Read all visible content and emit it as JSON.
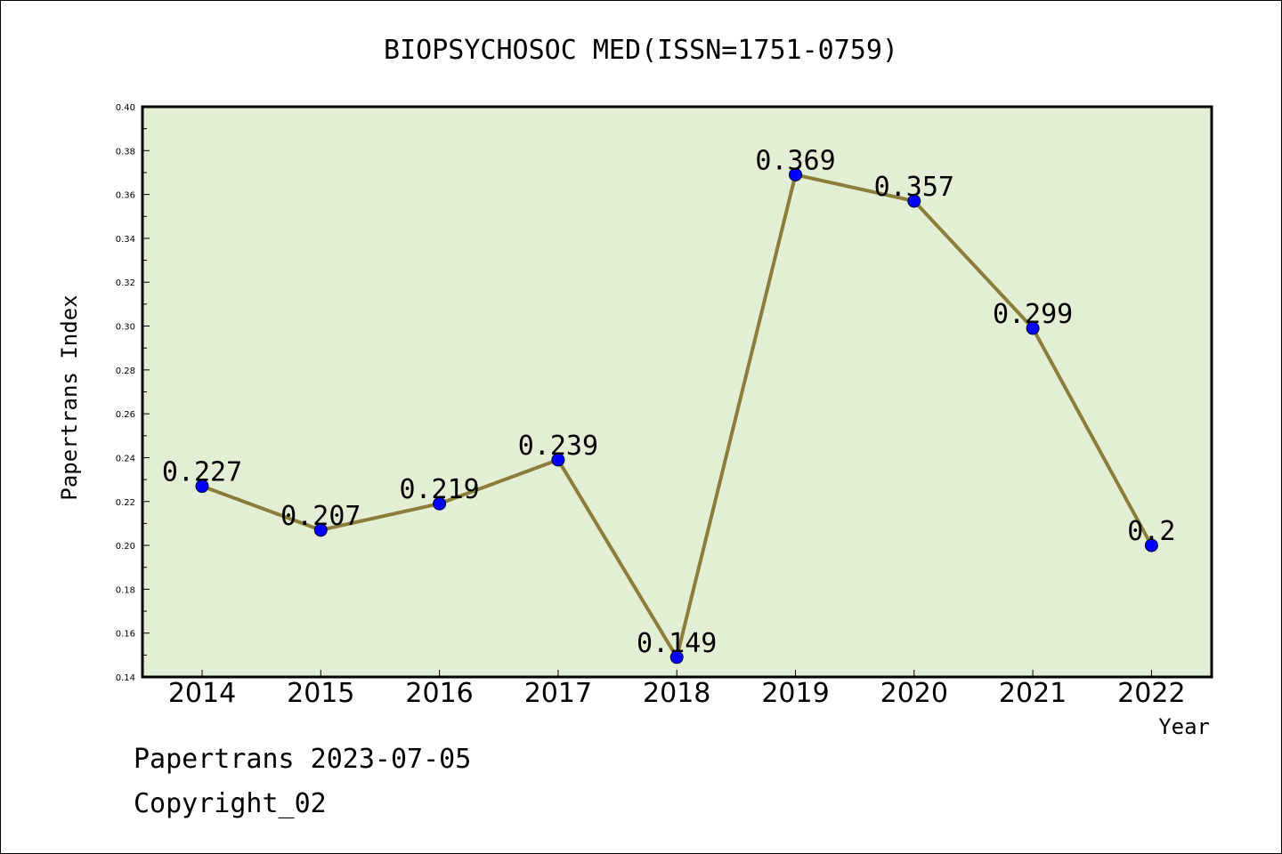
{
  "footer": {
    "line1": "Papertrans 2023-07-05",
    "line2": "Copyright_02"
  },
  "chart_data": {
    "type": "line",
    "title": "BIOPSYCHOSOC MED(ISSN=1751-0759)",
    "xlabel": "Year",
    "ylabel": "Papertrans Index",
    "categories": [
      "2014",
      "2015",
      "2016",
      "2017",
      "2018",
      "2019",
      "2020",
      "2021",
      "2022"
    ],
    "series": [
      {
        "values": [
          0.227,
          0.207,
          0.219,
          0.239,
          0.149,
          0.369,
          0.357,
          0.299,
          0.2
        ],
        "labels": [
          "0.227",
          "0.207",
          "0.219",
          "0.239",
          "0.149",
          "0.369",
          "0.357",
          "0.299",
          "0.2"
        ]
      }
    ],
    "ylim": [
      0.14,
      0.4
    ],
    "yticks": [
      "0.14",
      "0.16",
      "0.18",
      "0.20",
      "0.22",
      "0.24",
      "0.26",
      "0.28",
      "0.30",
      "0.32",
      "0.34",
      "0.36",
      "0.38",
      "0.40"
    ],
    "grid": false,
    "colors": {
      "plot_bg": "#e2efd5",
      "line": "#8b7d3a",
      "marker": "#0000ff"
    }
  }
}
